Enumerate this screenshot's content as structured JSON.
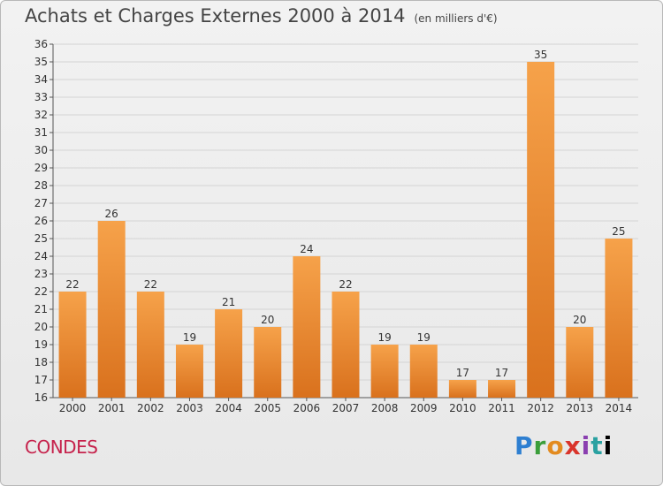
{
  "title": "Achats et Charges Externes 2000 à 2014",
  "subtitle": "(en milliers d'€)",
  "city": "CONDES",
  "logo": [
    "P",
    "r",
    "o",
    "x",
    "i",
    "t",
    "i"
  ],
  "colors": {
    "bar_top": "#f6a24a",
    "bar_bottom": "#d9711d",
    "grid": "#d4d4d4"
  },
  "chart_data": {
    "type": "bar",
    "title": "Achats et Charges Externes 2000 à 2014",
    "subtitle": "(en milliers d'€)",
    "categories": [
      "2000",
      "2001",
      "2002",
      "2003",
      "2004",
      "2005",
      "2006",
      "2007",
      "2008",
      "2009",
      "2010",
      "2011",
      "2012",
      "2013",
      "2014"
    ],
    "values": [
      22,
      26,
      22,
      19,
      21,
      20,
      24,
      22,
      19,
      19,
      17,
      17,
      35,
      20,
      25
    ],
    "xlabel": "",
    "ylabel": "",
    "ylim": [
      16,
      36
    ],
    "ytick_step": 1,
    "grid": true,
    "data_labels": true
  }
}
